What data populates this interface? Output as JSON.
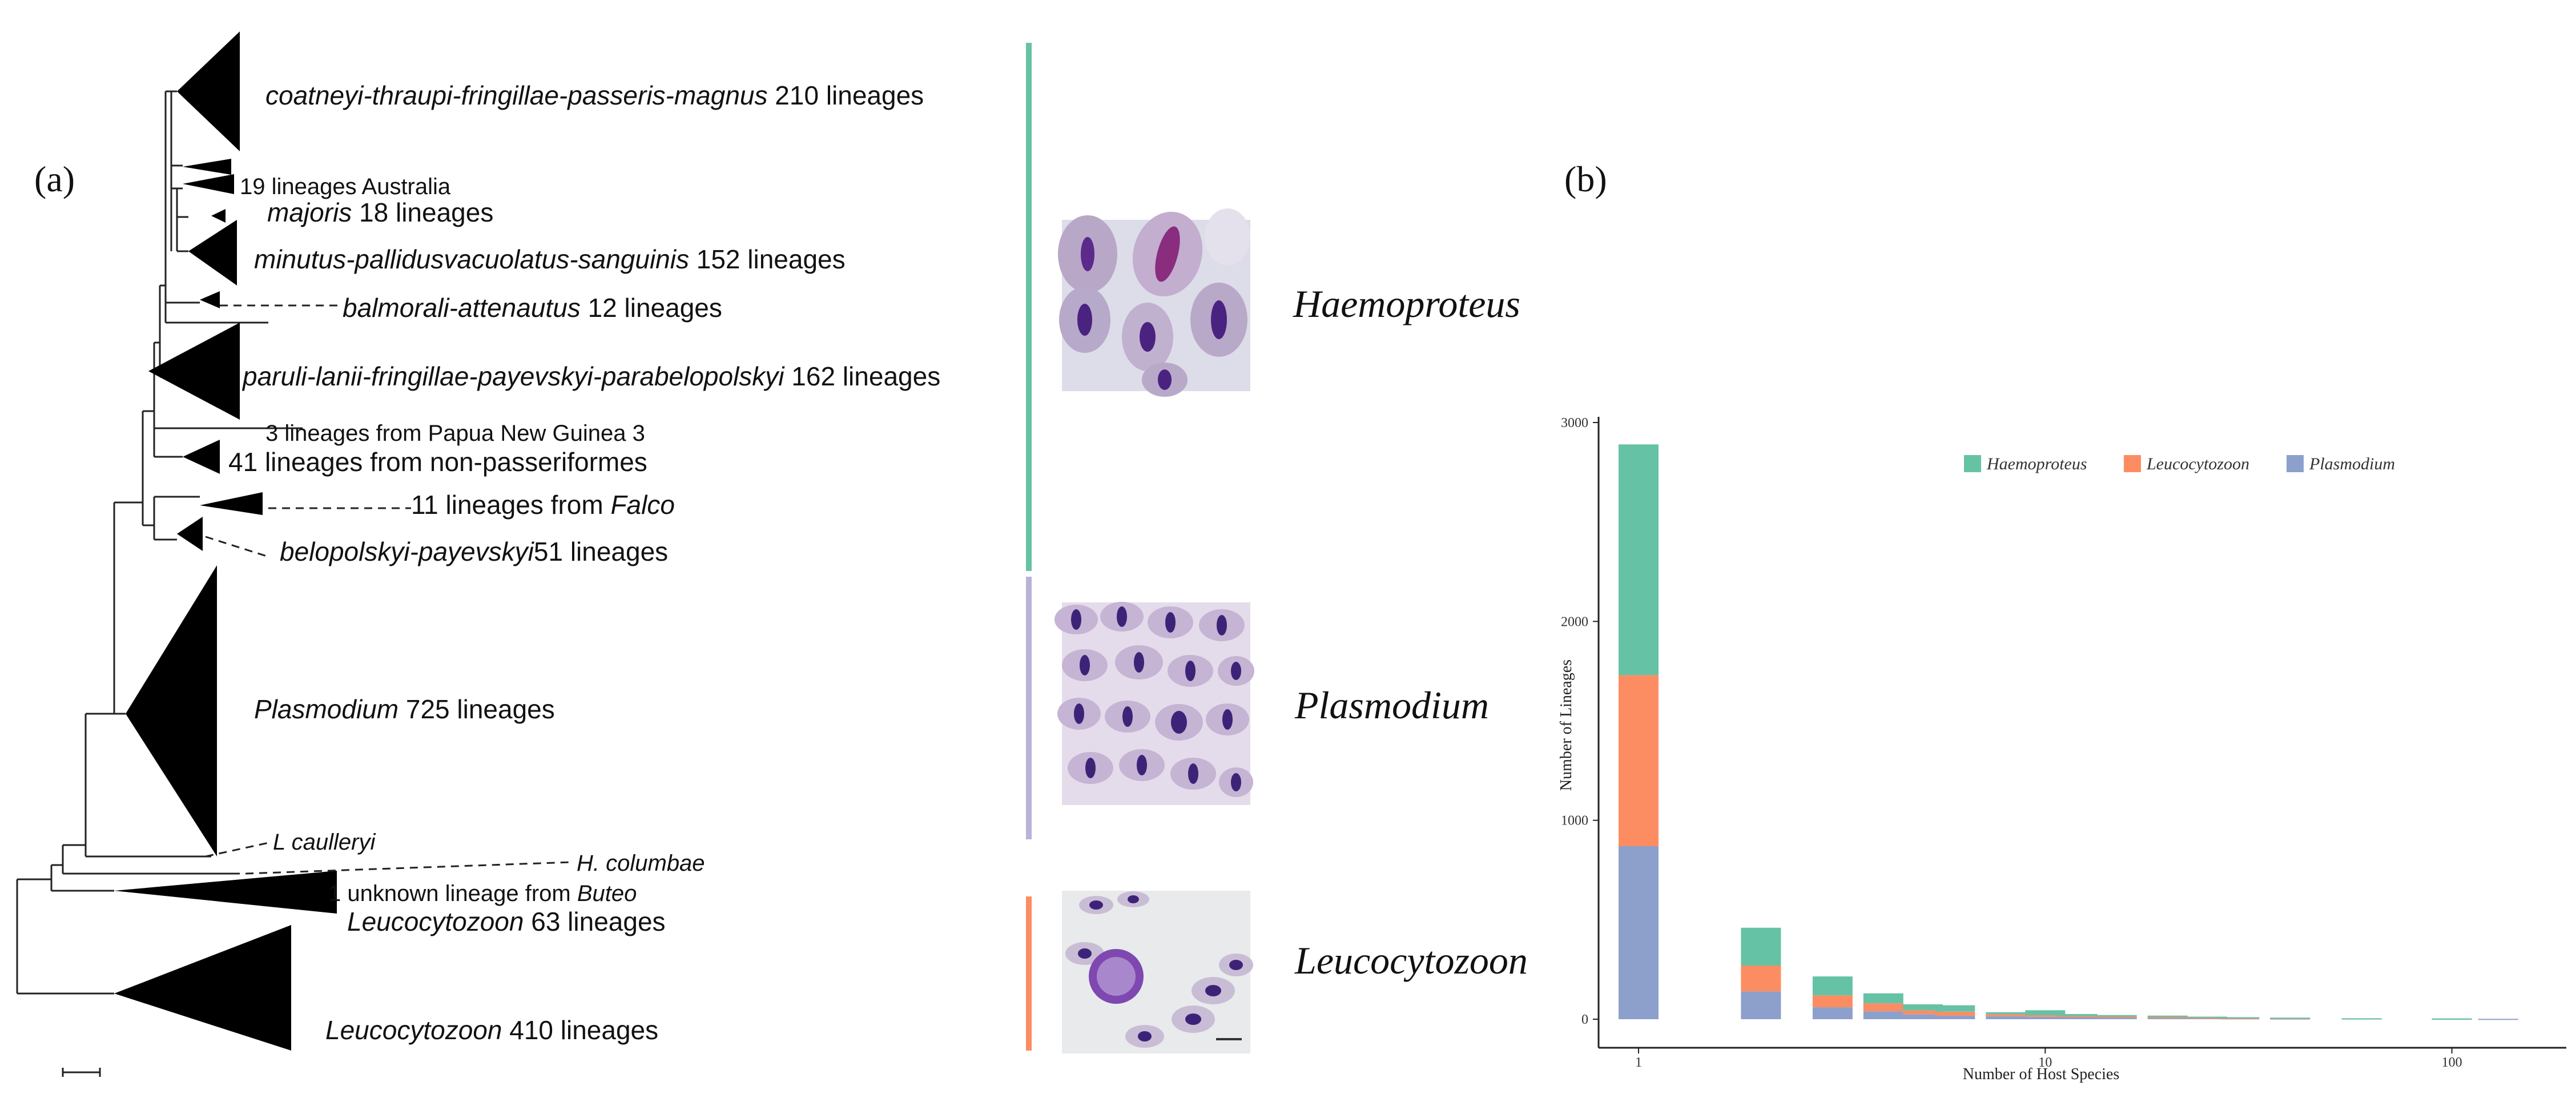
{
  "panel_a_label": "(a)",
  "panel_b_label": "(b)",
  "tree_labels": {
    "coatneyi": {
      "italic": "coatneyi-thraupi-fringillae-passeris-magnus",
      "rest": " 210 lineages"
    },
    "australia": {
      "italic": "",
      "rest": "19 lineages Australia"
    },
    "majoris": {
      "italic": "majoris",
      "rest": " 18 lineages"
    },
    "minutus": {
      "italic": "minutus-pallidusvacuolatus-sanguinis",
      "rest": " 152 lineages"
    },
    "balmorali": {
      "italic": "balmorali-attenautus",
      "rest": " 12 lineages"
    },
    "paruli": {
      "italic": "paruli-lanii-fringillae-payevskyi-parabelopolskyi",
      "rest": " 162 lineages"
    },
    "papua": {
      "italic": "",
      "rest": "3 lineages from Papua New Guinea 3"
    },
    "nonpasseri": {
      "italic": "",
      "rest": "41 lineages from non-passeriformes"
    },
    "falco": {
      "pre": "11 lineages from ",
      "italic": "Falco"
    },
    "belopolskyi": {
      "italic": "belopolskyi-payevskyi",
      "rest": "51 lineages"
    },
    "plasmodium": {
      "italic": "Plasmodium",
      "rest": "  725 lineages"
    },
    "caulleryi": {
      "italic": "L caulleryi"
    },
    "columbae": {
      "italic": "H. columbae"
    },
    "buteo": {
      "pre": "1 unknown lineage from ",
      "italic": "Buteo"
    },
    "leuco63": {
      "italic": "Leucocytozoon",
      "rest": " 63 lineages"
    },
    "leuco410": {
      "italic": "Leucocytozoon",
      "rest": " 410 lineages"
    }
  },
  "genus_labels": {
    "haemoproteus": "Haemoproteus",
    "plasmodium": "Plasmodium",
    "leucocytozoon": "Leucocytozoon"
  },
  "colors": {
    "haemoproteus": "#66c2a5",
    "plasmodium": "#8da0cb",
    "leucocytozoon": "#fc8d62",
    "plasmodium_bar_light": "#b9b3d8"
  },
  "chart_data": {
    "type": "bar",
    "stacked": true,
    "x_scale": "log",
    "xlabel": "Number of Host Species",
    "ylabel": "Number of Lineages",
    "x_ticks": [
      1,
      10,
      100
    ],
    "y_ticks": [
      0,
      1000,
      2000,
      3000
    ],
    "ylim": [
      0,
      3000
    ],
    "legend_position": "top-right",
    "x": [
      1,
      2,
      3,
      4,
      5,
      6,
      8,
      10,
      12,
      15,
      20,
      25,
      30,
      40,
      60,
      100,
      130
    ],
    "series": [
      {
        "name": "Plasmodium",
        "color": "#8da0cb",
        "values": [
          870,
          140,
          60,
          40,
          25,
          18,
          15,
          12,
          10,
          8,
          6,
          6,
          5,
          4,
          4,
          3,
          2
        ]
      },
      {
        "name": "Leucocytozoon",
        "color": "#fc8d62",
        "values": [
          860,
          130,
          60,
          40,
          20,
          20,
          10,
          8,
          6,
          5,
          4,
          3,
          2,
          2,
          0,
          0,
          0
        ]
      },
      {
        "name": "Haemoproteus",
        "color": "#66c2a5",
        "values": [
          1160,
          190,
          95,
          50,
          30,
          32,
          10,
          25,
          10,
          8,
          8,
          4,
          3,
          2,
          1,
          1,
          0
        ]
      }
    ],
    "legend_order": [
      "Haemoproteus",
      "Leucocytozoon",
      "Plasmodium"
    ]
  }
}
